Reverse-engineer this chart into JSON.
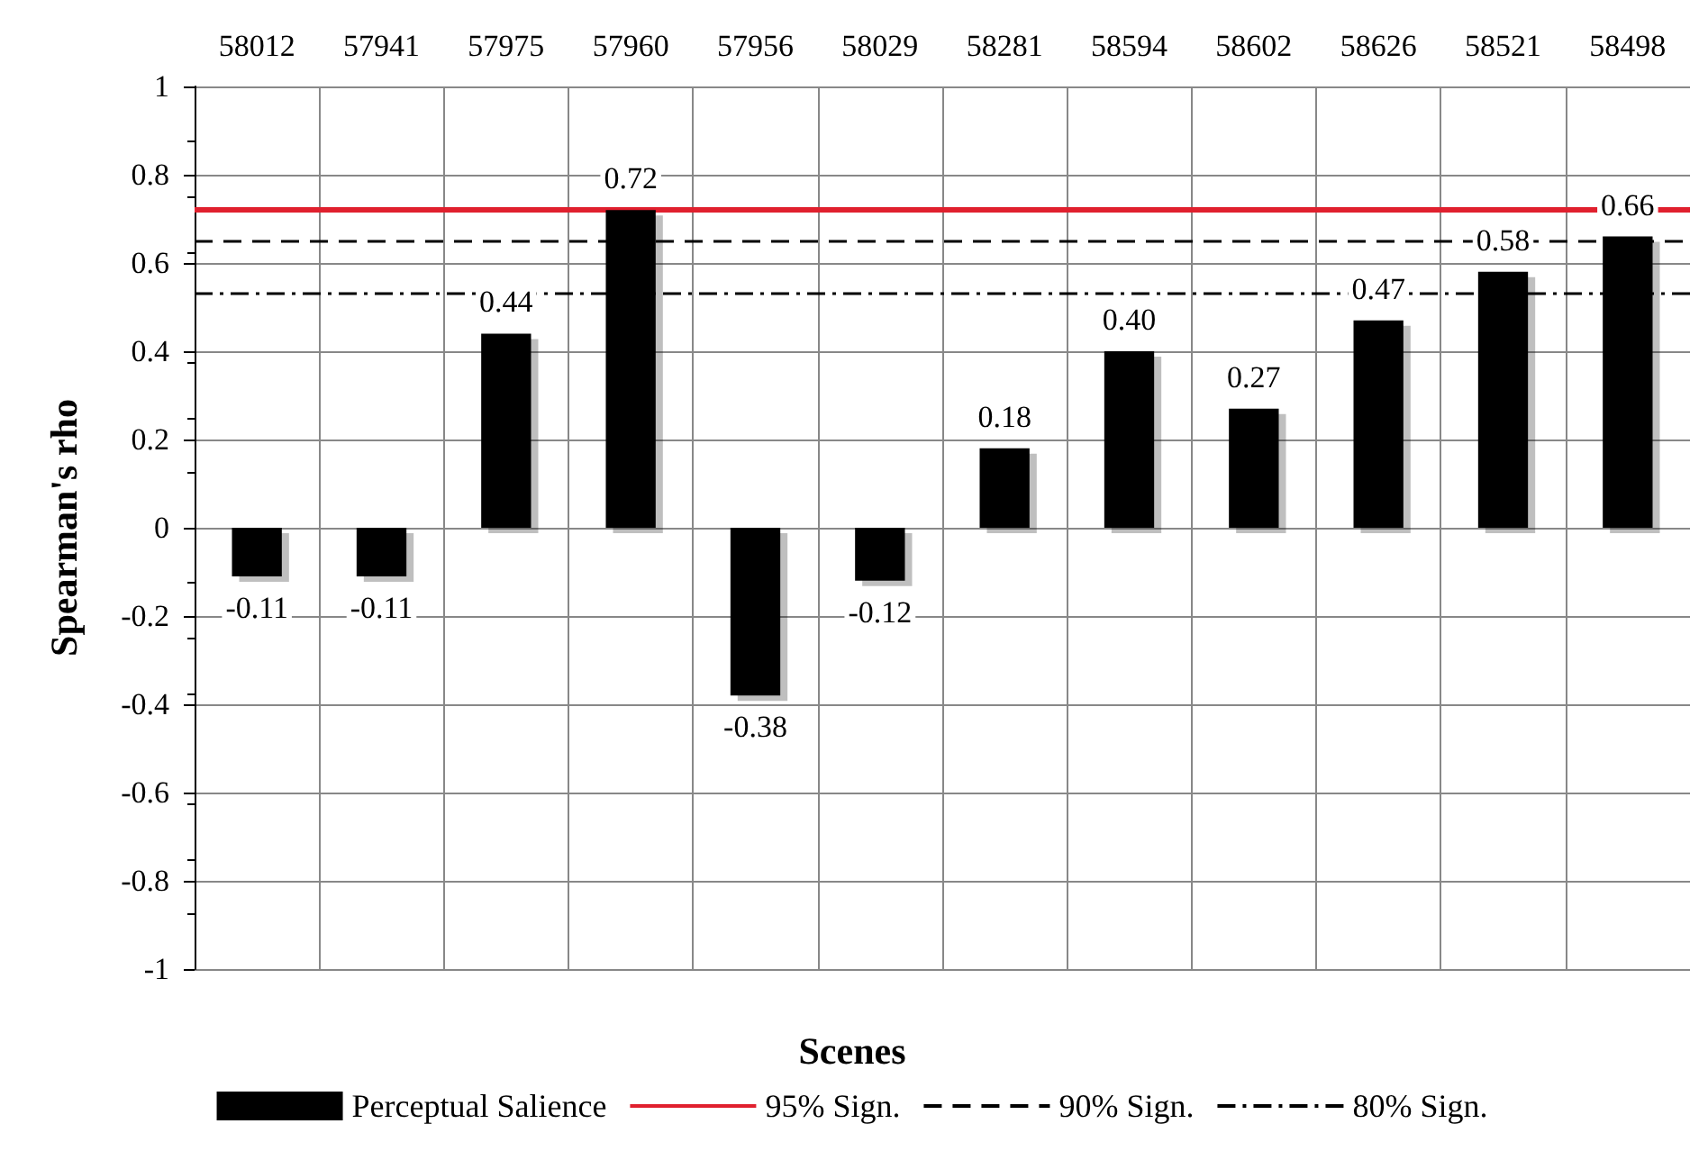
{
  "chart_data": {
    "type": "bar",
    "xlabel": "Scenes",
    "ylabel": "Spearman's rho",
    "categories": [
      "58012",
      "57941",
      "57975",
      "57960",
      "57956",
      "58029",
      "58281",
      "58594",
      "58602",
      "58626",
      "58521",
      "58498"
    ],
    "series": [
      {
        "name": "Perceptual Salience",
        "color": "#000000",
        "values": [
          -0.11,
          -0.11,
          0.44,
          0.72,
          -0.38,
          -0.12,
          0.18,
          0.4,
          0.27,
          0.47,
          0.58,
          0.66
        ],
        "value_labels": [
          "-0.11",
          "-0.11",
          "0.44",
          "0.72",
          "-0.38",
          "-0.12",
          "0.18",
          "0.40",
          "0.27",
          "0.47",
          "0.58",
          "0.66"
        ]
      }
    ],
    "ylim": [
      -1,
      1
    ],
    "yticks": [
      -1,
      -0.8,
      -0.6,
      -0.4,
      -0.2,
      0,
      0.2,
      0.4,
      0.6,
      0.8,
      1
    ],
    "ref_lines": [
      {
        "axis": "y",
        "value": 0.72,
        "label": "95% Sign.",
        "color": "#e0202e",
        "line_style": "solid"
      },
      {
        "axis": "y",
        "value": 0.645,
        "label": "90% Sign.",
        "color": "#000000",
        "line_style": "dashed"
      },
      {
        "axis": "y",
        "value": 0.525,
        "label": "80% Sign.",
        "color": "#000000",
        "line_style": "dashdot"
      }
    ],
    "grid": true,
    "legend": "bottom"
  }
}
